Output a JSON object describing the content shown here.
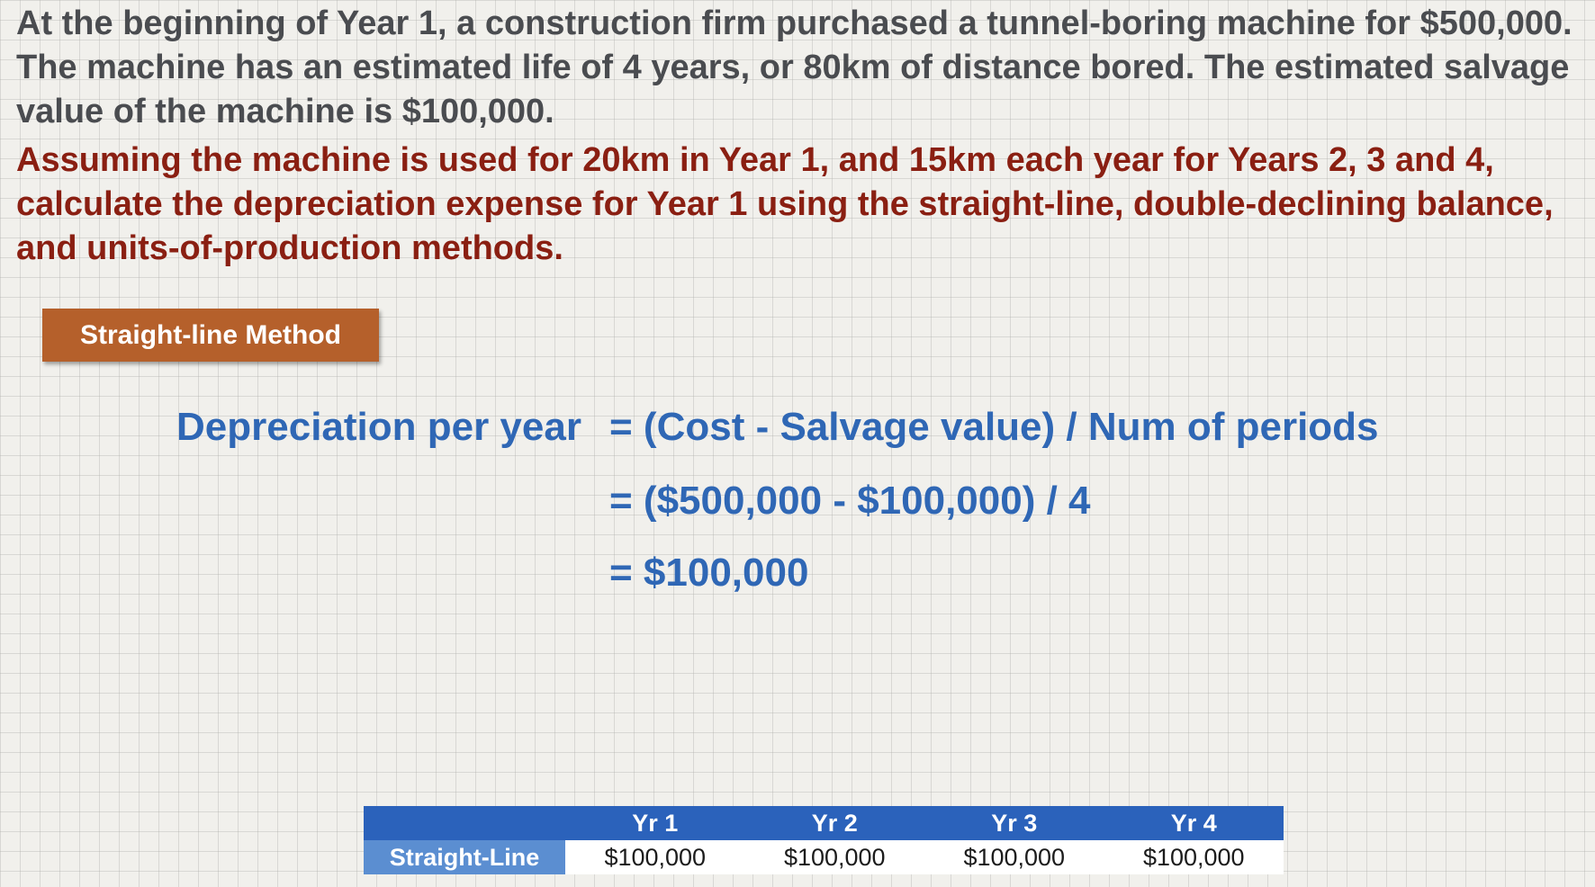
{
  "intro": "At the beginning of Year 1, a construction firm purchased a tunnel-boring machine for $500,000.  The machine has an estimated life of 4 years, or 80km of distance bored.  The estimated salvage value of the machine is $100,000.",
  "question": "Assuming the machine is used for 20km in Year 1, and 15km each year for Years 2, 3 and 4, calculate the depreciation expense for Year 1 using the straight-line, double-declining balance, and units-of-production methods.",
  "method_badge": "Straight-line Method",
  "formula": {
    "label": "Depreciation per year",
    "line1": "= (Cost - Salvage value) / Num of periods",
    "line2": "= ($500,000 - $100,000) / 4",
    "line3": "= $100,000"
  },
  "table": {
    "corner": "",
    "headers": [
      "Yr 1",
      "Yr 2",
      "Yr 3",
      "Yr 4"
    ],
    "row_label": "Straight-Line",
    "values": [
      "$100,000",
      "$100,000",
      "$100,000",
      "$100,000"
    ]
  },
  "colors": {
    "intro_text": "#4a4c50",
    "question_text": "#8a1f12",
    "badge_bg": "#b5602b",
    "formula_text": "#2f67b5",
    "table_header_bg": "#2b62bb",
    "row_label_bg": "#5b8ed1"
  }
}
